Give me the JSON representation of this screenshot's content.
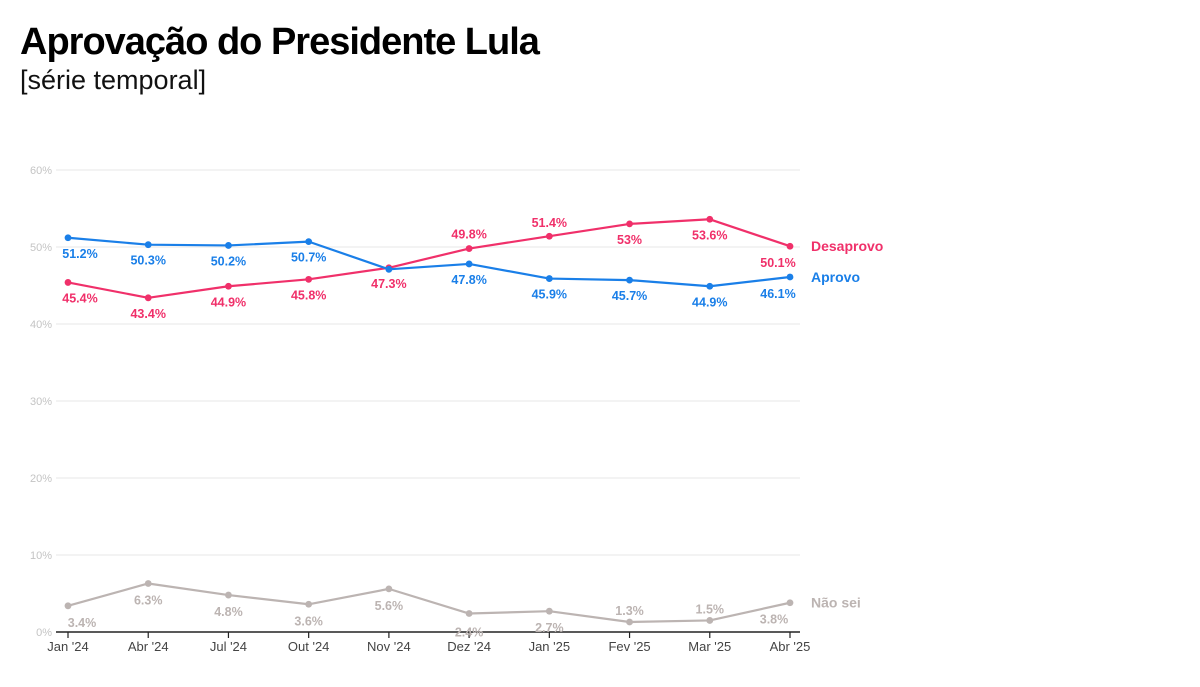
{
  "header": {
    "title": "Aprovação do Presidente Lula",
    "subtitle": "[série temporal]"
  },
  "chart_data": {
    "type": "line",
    "title": "Aprovação do Presidente Lula",
    "subtitle": "[série temporal]",
    "xlabel": "",
    "ylabel": "",
    "ylim": [
      0,
      60
    ],
    "yticks": [
      0,
      10,
      20,
      30,
      40,
      50,
      60
    ],
    "ytick_labels": [
      "0%",
      "10%",
      "20%",
      "30%",
      "40%",
      "50%",
      "60%"
    ],
    "grid": true,
    "legend": "right (direct labels at line ends)",
    "categories": [
      "Jan '24",
      "Abr '24",
      "Jul '24",
      "Out '24",
      "Nov '24",
      "Dez '24",
      "Jan '25",
      "Fev '25",
      "Mar '25",
      "Abr '25"
    ],
    "series": [
      {
        "name": "Desaprovo",
        "color": "#f0306a",
        "values": [
          45.4,
          43.4,
          44.9,
          45.8,
          47.3,
          49.8,
          51.4,
          53.0,
          53.6,
          50.1
        ],
        "labels": [
          "45.4%",
          "43.4%",
          "44.9%",
          "45.8%",
          "47.3%",
          "49.8%",
          "51.4%",
          "53%",
          "53.6%",
          "50.1%"
        ]
      },
      {
        "name": "Aprovo",
        "color": "#1a7fe8",
        "values": [
          51.2,
          50.3,
          50.2,
          50.7,
          47.1,
          47.8,
          45.9,
          45.7,
          44.9,
          46.1
        ],
        "labels": [
          "51.2%",
          "50.3%",
          "50.2%",
          "50.7%",
          "",
          "47.8%",
          "45.9%",
          "45.7%",
          "44.9%",
          "46.1%"
        ]
      },
      {
        "name": "Não sei",
        "color": "#bcb4b2",
        "values": [
          3.4,
          6.3,
          4.8,
          3.6,
          5.6,
          2.4,
          2.7,
          1.3,
          1.5,
          3.8
        ],
        "labels": [
          "3.4%",
          "6.3%",
          "4.8%",
          "3.6%",
          "5.6%",
          "2.4%",
          "2.7%",
          "1.3%",
          "1.5%",
          "3.8%"
        ]
      }
    ]
  }
}
